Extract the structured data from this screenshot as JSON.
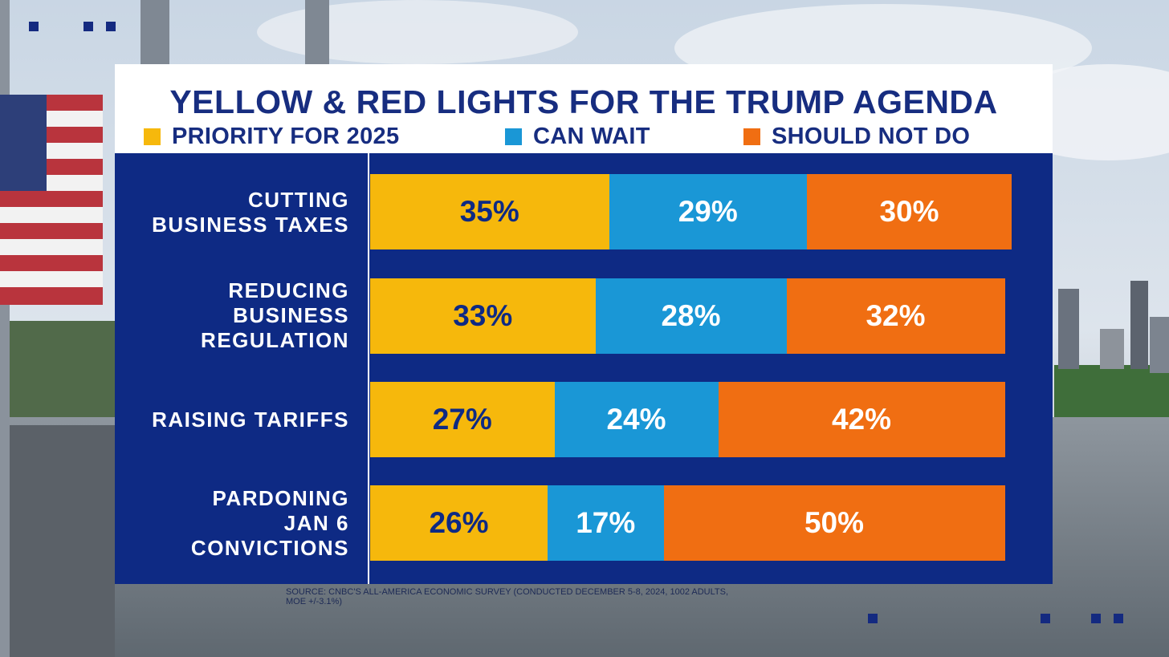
{
  "colors": {
    "priority": "#f6b80c",
    "can_wait": "#1a97d6",
    "should_not": "#f06e12",
    "navy": "#0e2a84",
    "title_text": "#172d80"
  },
  "chart_data": {
    "type": "bar",
    "orientation": "horizontal",
    "stacked": true,
    "title": "YELLOW & RED LIGHTS FOR THE TRUMP AGENDA",
    "categories": [
      "CUTTING\nBUSINESS TAXES",
      "REDUCING\nBUSINESS\nREGULATION",
      "RAISING TARIFFS",
      "PARDONING\nJAN 6\nCONVICTIONS"
    ],
    "series": [
      {
        "name": "PRIORITY FOR 2025",
        "values": [
          35,
          33,
          27,
          26
        ],
        "labels": [
          "35%",
          "33%",
          "27%",
          "26%"
        ]
      },
      {
        "name": "CAN WAIT",
        "values": [
          29,
          28,
          24,
          17
        ],
        "labels": [
          "29%",
          "28%",
          "24%",
          "17%"
        ]
      },
      {
        "name": "SHOULD NOT DO",
        "values": [
          30,
          32,
          42,
          50
        ],
        "labels": [
          "30%",
          "32%",
          "42%",
          "50%"
        ]
      }
    ],
    "legend_position": "top",
    "grid": false
  },
  "source": "SOURCE: CNBC'S ALL-AMERICA ECONOMIC SURVEY (CONDUCTED DECEMBER 5-8, 2024, 1002 ADULTS, MOE +/-3.1%)"
}
